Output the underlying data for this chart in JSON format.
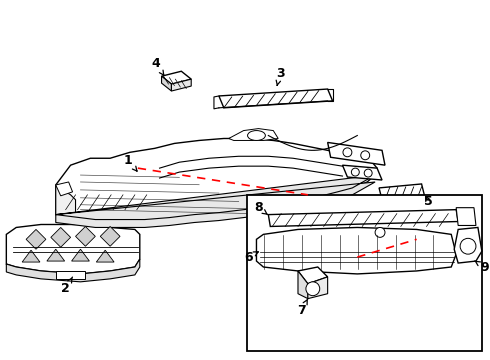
{
  "background_color": "#ffffff",
  "line_color": "#000000",
  "red_color": "#ff0000",
  "fig_w": 4.9,
  "fig_h": 3.6,
  "dpi": 100
}
